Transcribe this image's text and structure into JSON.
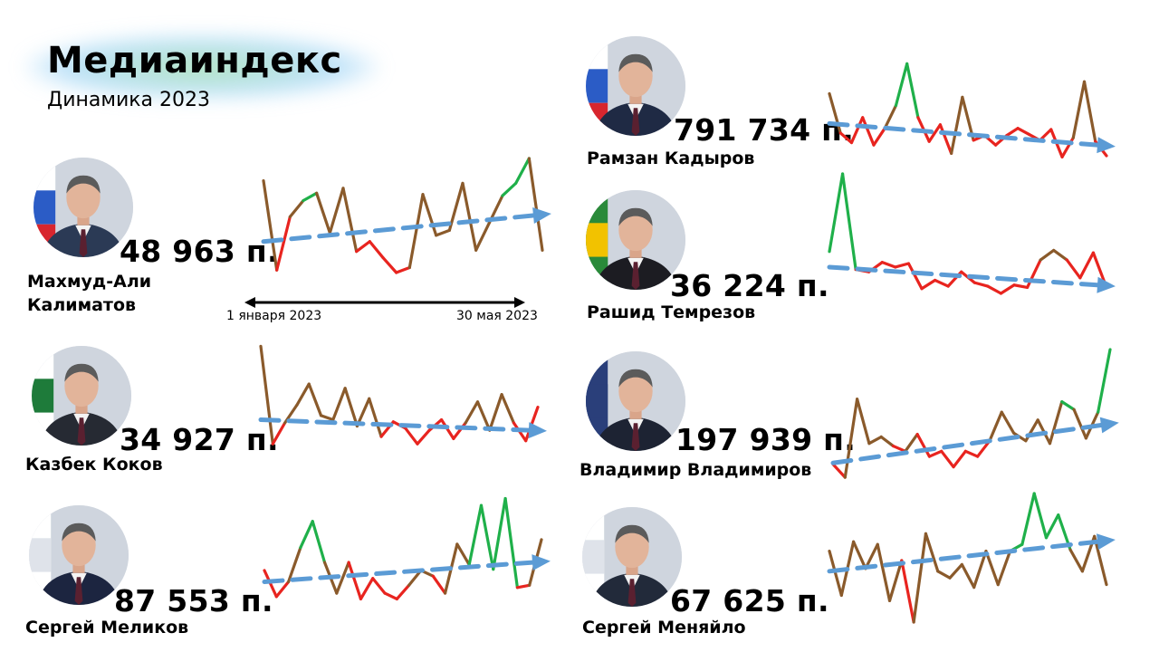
{
  "header": {
    "title": "Медиаиндекс",
    "subtitle": "Динамика 2023"
  },
  "axis": {
    "start_label": "1 января 2023",
    "end_label": "30 мая 2023"
  },
  "colors": {
    "high": "#1fb04a",
    "mid": "#8a5a2b",
    "low": "#e8241f",
    "trend": "#5b9bd5"
  },
  "people": [
    {
      "name": "Махмуд-Али Калиматов",
      "name_line1": "Махмуд-Али",
      "name_line2": "Калиматов",
      "score": "48 963 п.",
      "suit": "#2b3a55",
      "flag": [
        "#ffffff",
        "#2b5cc6",
        "#d8262e"
      ]
    },
    {
      "name": "Рамзан Кадыров",
      "name_line1": "Рамзан Кадыров",
      "name_line2": "",
      "score": "791 734 п.",
      "suit": "#1f2a44",
      "flag": [
        "#ffffff",
        "#2b5cc6",
        "#d8262e"
      ]
    },
    {
      "name": "Рашид Темрезов",
      "name_line1": "Рашид Темрезов",
      "name_line2": "",
      "score": "36 224 п.",
      "suit": "#1c1c22",
      "flag": [
        "#2a8a3a",
        "#f2c200",
        "#2a8a3a"
      ]
    },
    {
      "name": "Казбек Коков",
      "name_line1": "Казбек Коков",
      "name_line2": "",
      "score": "34 927 п.",
      "suit": "#262a33",
      "flag": [
        "#ffffff",
        "#1e7b3a",
        "#ffffff"
      ]
    },
    {
      "name": "Владимир Владимиров",
      "name_line1": "Владимир Владимиров",
      "name_line2": "",
      "score": "197 939 п.",
      "suit": "#1d2333",
      "flag": [
        "#2a3f7a",
        "#2a3f7a",
        "#2a3f7a"
      ]
    },
    {
      "name": "Сергей Меликов",
      "name_line1": "Сергей Меликов",
      "name_line2": "",
      "score": "87 553 п.",
      "suit": "#1c2540",
      "flag": [
        "#ffffff",
        "#dfe3ea",
        "#ffffff"
      ]
    },
    {
      "name": "Сергей Меняйло",
      "name_line1": "Сергей Меняйло",
      "name_line2": "",
      "score": "67 625 п.",
      "suit": "#222a3a",
      "flag": [
        "#ffffff",
        "#dfe3ea",
        "#ffffff"
      ]
    }
  ],
  "chart_data": [
    {
      "type": "line",
      "name": "Махмуд-Али Калиматов",
      "values": [
        0.74,
        0.02,
        0.45,
        0.58,
        0.64,
        0.32,
        0.68,
        0.17,
        0.25,
        0.12,
        0.0,
        0.04,
        0.63,
        0.3,
        0.34,
        0.72,
        0.18,
        0.4,
        0.62,
        0.72,
        0.92,
        0.18
      ],
      "trend": [
        0.25,
        0.46
      ]
    },
    {
      "type": "line",
      "name": "Рамзан Кадыров",
      "values": [
        0.55,
        0.22,
        0.14,
        0.35,
        0.12,
        0.26,
        0.45,
        0.8,
        0.35,
        0.15,
        0.29,
        0.05,
        0.52,
        0.16,
        0.2,
        0.12,
        0.2,
        0.26,
        0.21,
        0.16,
        0.25,
        0.02,
        0.18,
        0.65,
        0.15,
        0.03
      ],
      "trend": [
        0.3,
        0.12
      ]
    },
    {
      "type": "line",
      "name": "Рашид Темрезов",
      "values": [
        0.35,
        1.0,
        0.2,
        0.18,
        0.26,
        0.22,
        0.25,
        0.04,
        0.11,
        0.06,
        0.18,
        0.09,
        0.06,
        0.0,
        0.07,
        0.05,
        0.28,
        0.36,
        0.28,
        0.13,
        0.34,
        0.05
      ],
      "trend": [
        0.22,
        0.07
      ]
    },
    {
      "type": "line",
      "name": "Казбек Коков",
      "values": [
        0.98,
        0.05,
        0.25,
        0.42,
        0.62,
        0.32,
        0.28,
        0.58,
        0.22,
        0.48,
        0.12,
        0.26,
        0.2,
        0.05,
        0.18,
        0.28,
        0.1,
        0.25,
        0.45,
        0.18,
        0.52,
        0.25,
        0.08,
        0.4
      ],
      "trend": [
        0.28,
        0.18
      ]
    },
    {
      "type": "line",
      "name": "Владимир Владимиров",
      "values": [
        0.12,
        0.02,
        0.62,
        0.28,
        0.33,
        0.26,
        0.22,
        0.35,
        0.18,
        0.22,
        0.1,
        0.22,
        0.18,
        0.3,
        0.52,
        0.36,
        0.3,
        0.46,
        0.28,
        0.6,
        0.54,
        0.32,
        0.52,
        1.0
      ],
      "trend": [
        0.13,
        0.42
      ]
    },
    {
      "type": "line",
      "name": "Сергей Меликов",
      "values": [
        0.35,
        0.12,
        0.25,
        0.55,
        0.78,
        0.42,
        0.15,
        0.42,
        0.1,
        0.28,
        0.15,
        0.1,
        0.22,
        0.35,
        0.3,
        0.15,
        0.58,
        0.4,
        0.92,
        0.36,
        0.98,
        0.2,
        0.22,
        0.62
      ],
      "trend": [
        0.25,
        0.42
      ]
    },
    {
      "type": "line",
      "name": "Сергей Меняйло",
      "values": [
        0.55,
        0.22,
        0.62,
        0.42,
        0.6,
        0.18,
        0.48,
        0.02,
        0.68,
        0.4,
        0.35,
        0.45,
        0.28,
        0.55,
        0.3,
        0.55,
        0.6,
        0.98,
        0.65,
        0.82,
        0.56,
        0.4,
        0.66,
        0.3
      ],
      "trend": [
        0.4,
        0.62
      ]
    }
  ]
}
